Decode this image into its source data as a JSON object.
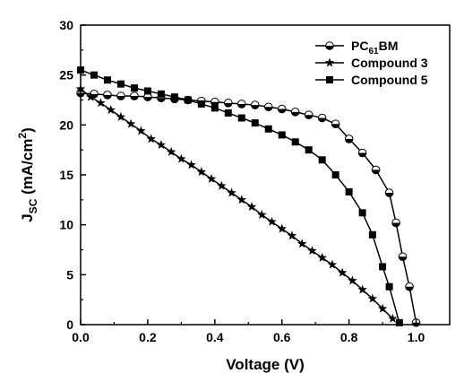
{
  "chart_data": {
    "type": "line",
    "xlabel": "Voltage (V)",
    "ylabel": {
      "main": "J",
      "sub": "SC",
      "unit_prefix": " (mA/cm",
      "sup": "2",
      "unit_suffix": ")"
    },
    "xlim": [
      0.0,
      1.1
    ],
    "ylim": [
      0,
      30
    ],
    "x_ticks": [
      "0.0",
      "0.2",
      "0.4",
      "0.6",
      "0.8",
      "1.0"
    ],
    "y_ticks": [
      "0",
      "5",
      "10",
      "15",
      "20",
      "25",
      "30"
    ],
    "legend_position": "top-right",
    "series": [
      {
        "name": "PC61BM",
        "legend": {
          "main": "PC",
          "sub": "61",
          "suffix": "BM"
        },
        "marker": "half-filled-circle",
        "points": [
          [
            0.0,
            23.2
          ],
          [
            0.04,
            23.1
          ],
          [
            0.08,
            23.0
          ],
          [
            0.12,
            22.9
          ],
          [
            0.16,
            22.9
          ],
          [
            0.2,
            22.8
          ],
          [
            0.24,
            22.7
          ],
          [
            0.28,
            22.6
          ],
          [
            0.32,
            22.5
          ],
          [
            0.36,
            22.4
          ],
          [
            0.4,
            22.3
          ],
          [
            0.44,
            22.2
          ],
          [
            0.48,
            22.1
          ],
          [
            0.52,
            22.0
          ],
          [
            0.56,
            21.8
          ],
          [
            0.6,
            21.6
          ],
          [
            0.64,
            21.3
          ],
          [
            0.68,
            21.0
          ],
          [
            0.72,
            20.7
          ],
          [
            0.76,
            20.1
          ],
          [
            0.8,
            18.6
          ],
          [
            0.84,
            17.2
          ],
          [
            0.88,
            15.5
          ],
          [
            0.92,
            13.2
          ],
          [
            0.94,
            10.2
          ],
          [
            0.96,
            6.8
          ],
          [
            0.98,
            3.8
          ],
          [
            1.0,
            0.2
          ]
        ]
      },
      {
        "name": "Compound 3",
        "marker": "star",
        "points": [
          [
            0.0,
            23.6
          ],
          [
            0.03,
            22.8
          ],
          [
            0.06,
            22.2
          ],
          [
            0.09,
            21.5
          ],
          [
            0.12,
            20.8
          ],
          [
            0.15,
            20.1
          ],
          [
            0.18,
            19.4
          ],
          [
            0.21,
            18.6
          ],
          [
            0.24,
            18.0
          ],
          [
            0.27,
            17.3
          ],
          [
            0.3,
            16.6
          ],
          [
            0.33,
            16.0
          ],
          [
            0.36,
            15.3
          ],
          [
            0.39,
            14.6
          ],
          [
            0.42,
            13.9
          ],
          [
            0.45,
            13.2
          ],
          [
            0.48,
            12.5
          ],
          [
            0.51,
            11.8
          ],
          [
            0.54,
            11.0
          ],
          [
            0.57,
            10.3
          ],
          [
            0.6,
            9.6
          ],
          [
            0.63,
            8.9
          ],
          [
            0.66,
            8.1
          ],
          [
            0.69,
            7.4
          ],
          [
            0.72,
            6.7
          ],
          [
            0.75,
            6.0
          ],
          [
            0.78,
            5.2
          ],
          [
            0.81,
            4.4
          ],
          [
            0.84,
            3.5
          ],
          [
            0.87,
            2.6
          ],
          [
            0.9,
            1.6
          ],
          [
            0.93,
            0.6
          ]
        ]
      },
      {
        "name": "Compound 5",
        "marker": "square",
        "points": [
          [
            0.0,
            25.5
          ],
          [
            0.04,
            25.0
          ],
          [
            0.08,
            24.5
          ],
          [
            0.12,
            24.1
          ],
          [
            0.16,
            23.7
          ],
          [
            0.2,
            23.4
          ],
          [
            0.24,
            23.1
          ],
          [
            0.28,
            22.8
          ],
          [
            0.32,
            22.5
          ],
          [
            0.36,
            22.1
          ],
          [
            0.4,
            21.7
          ],
          [
            0.44,
            21.2
          ],
          [
            0.48,
            20.7
          ],
          [
            0.52,
            20.2
          ],
          [
            0.56,
            19.6
          ],
          [
            0.6,
            19.0
          ],
          [
            0.64,
            18.3
          ],
          [
            0.68,
            17.5
          ],
          [
            0.72,
            16.5
          ],
          [
            0.76,
            15.0
          ],
          [
            0.8,
            13.3
          ],
          [
            0.84,
            11.2
          ],
          [
            0.87,
            9.0
          ],
          [
            0.9,
            5.8
          ],
          [
            0.92,
            3.8
          ],
          [
            0.95,
            0.2
          ]
        ]
      }
    ]
  }
}
